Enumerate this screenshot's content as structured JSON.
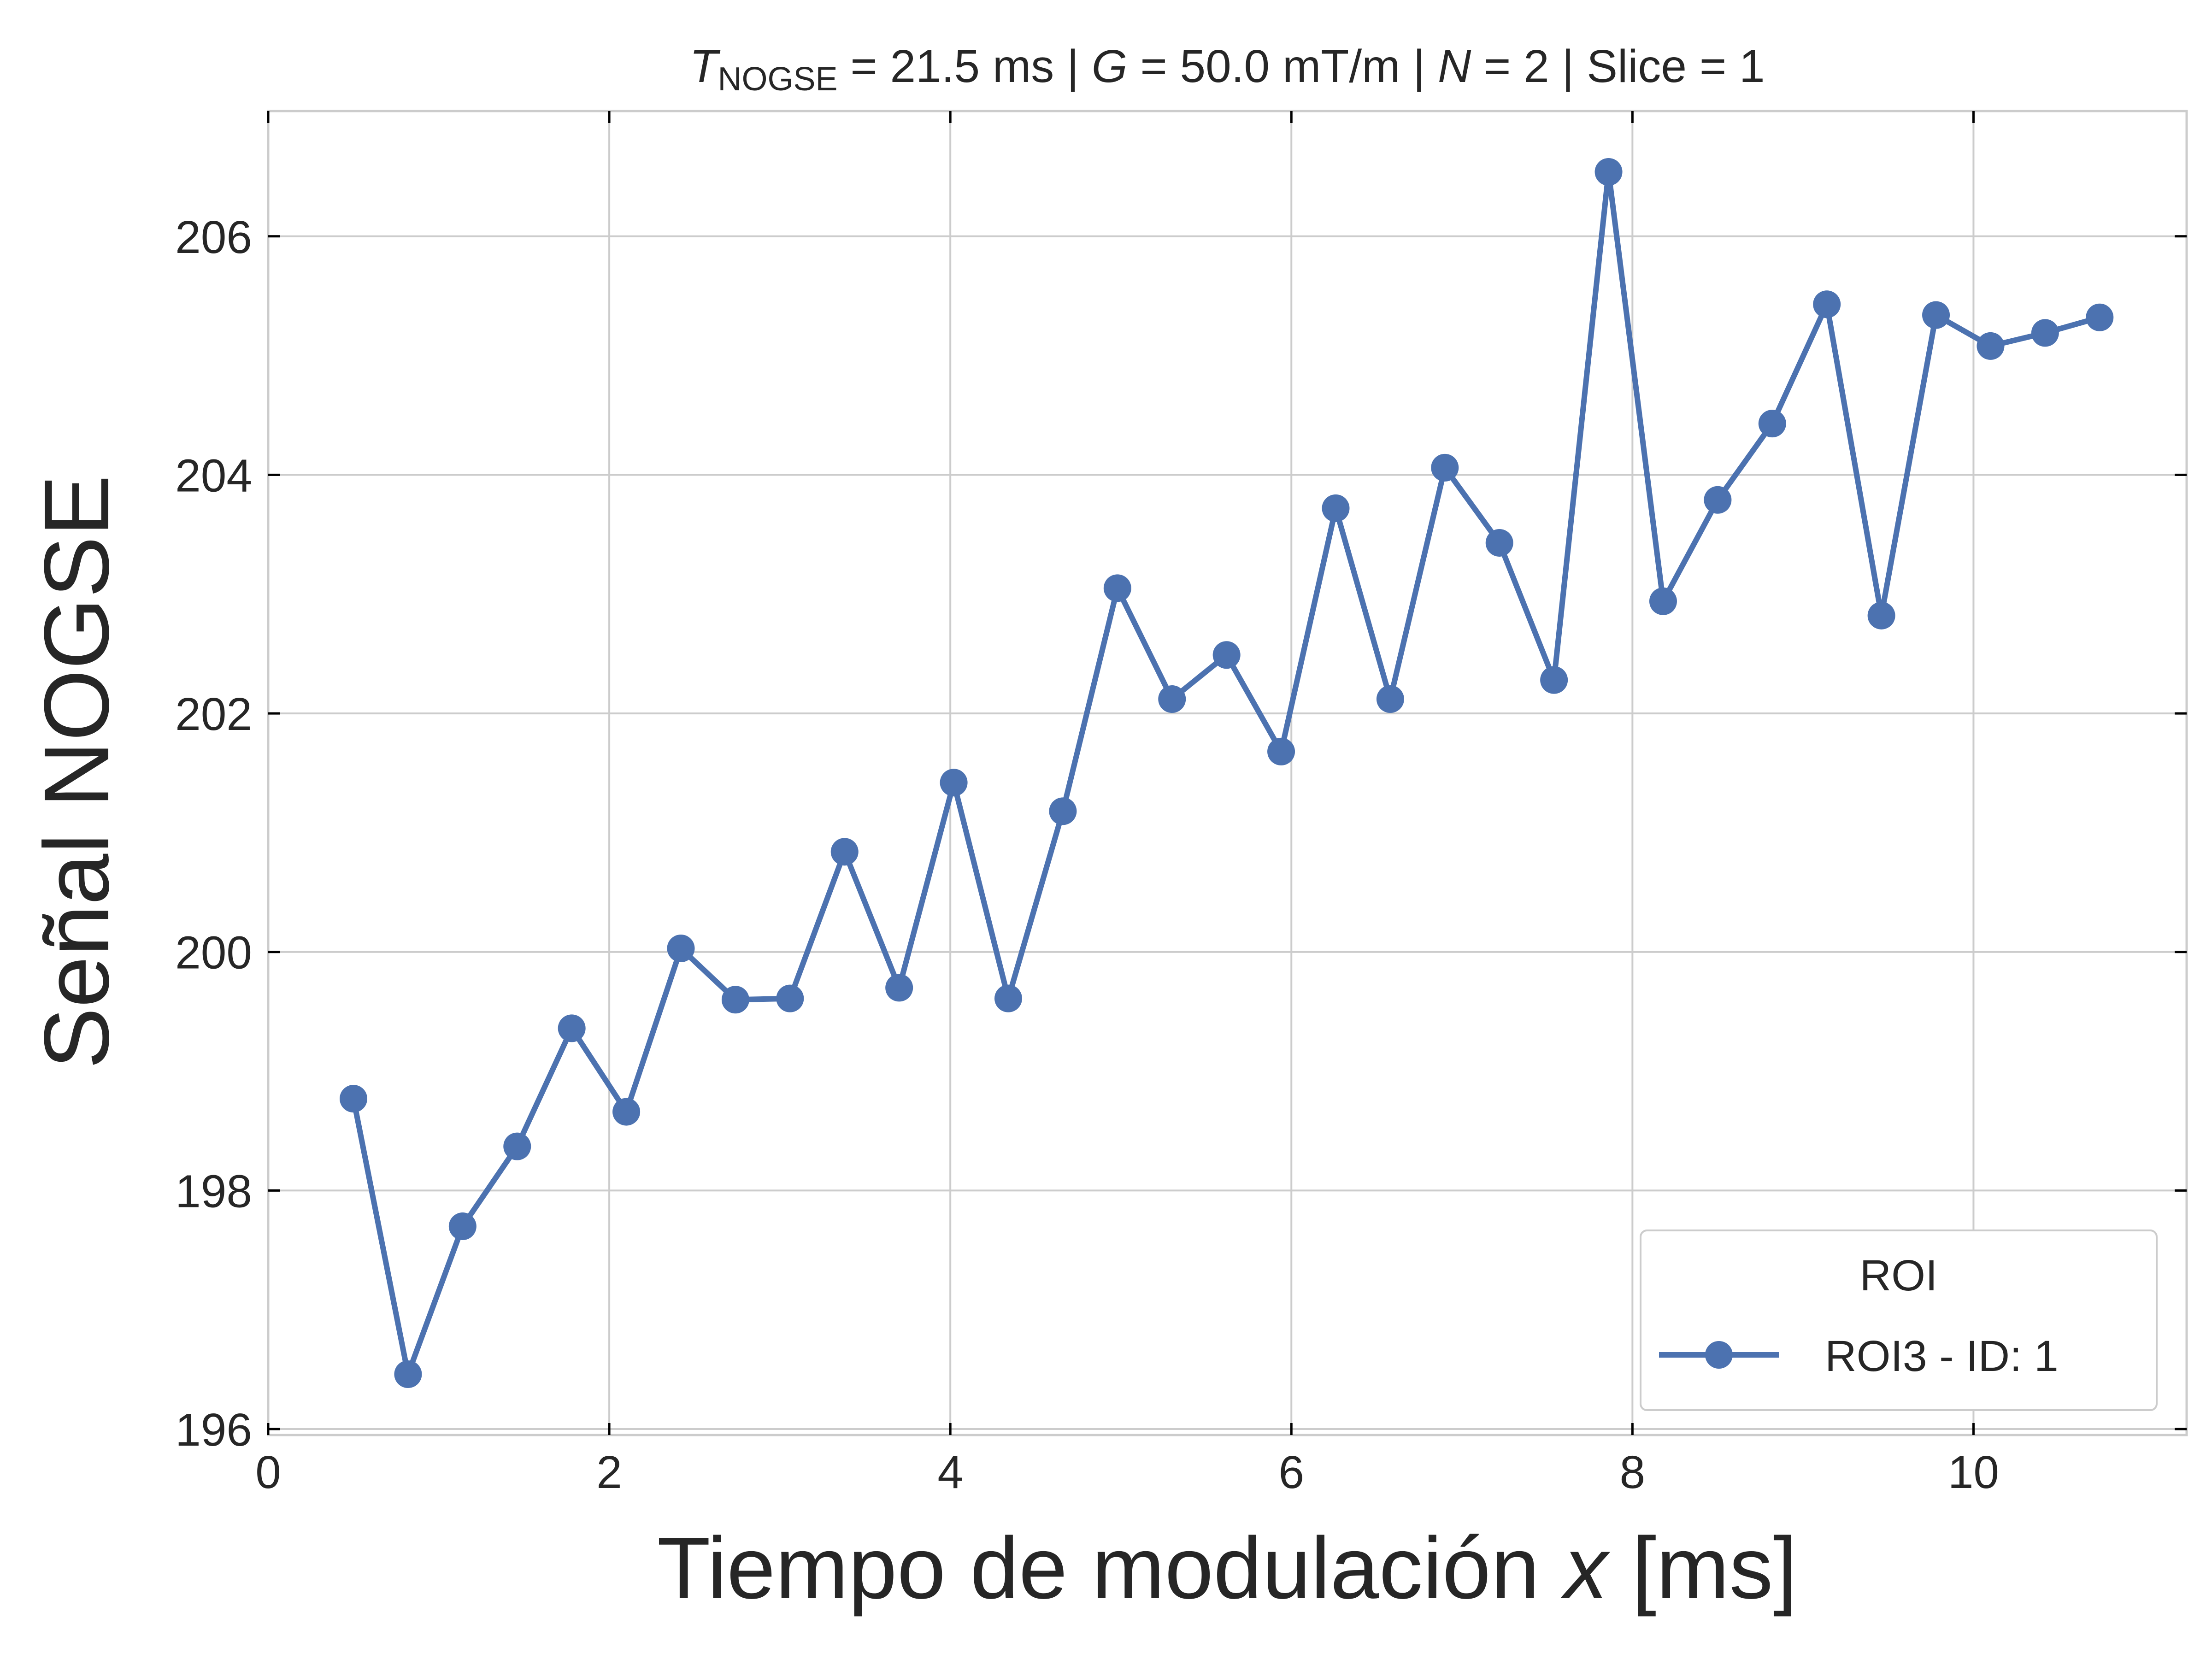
{
  "chart_data": {
    "type": "line",
    "title": {
      "t_symbol": "T",
      "t_subscript": "NOGSE",
      "t_value": " = 21.5 ms | ",
      "g_symbol": "G",
      "g_value": " = 50.0 mT/m | ",
      "n_symbol": "N",
      "n_value": " = 2 | Slice = 1"
    },
    "xlabel": {
      "prefix": "Tiempo de modulación ",
      "var": "x",
      "suffix": " [ms]"
    },
    "ylabel": "Señal NOGSE",
    "xlim": [
      0,
      11.25
    ],
    "ylim": [
      195.95,
      207.05
    ],
    "xticks": [
      0,
      2,
      4,
      6,
      8,
      10
    ],
    "xtick_labels": [
      "0",
      "2",
      "4",
      "6",
      "8",
      "10"
    ],
    "yticks": [
      196,
      198,
      200,
      202,
      204,
      206
    ],
    "ytick_labels": [
      "196",
      "198",
      "200",
      "202",
      "204",
      "206"
    ],
    "grid": true,
    "legend": {
      "title": "ROI",
      "placement": "lower right"
    },
    "series": [
      {
        "name": "ROI3 - ID: 1",
        "color": "#4c72b0",
        "marker": "circle",
        "x": [
          0.5,
          0.82,
          1.14,
          1.46,
          1.78,
          2.1,
          2.42,
          2.74,
          3.06,
          3.38,
          3.7,
          4.02,
          4.34,
          4.66,
          4.98,
          5.3,
          5.62,
          5.94,
          6.26,
          6.58,
          6.9,
          7.22,
          7.54,
          7.86,
          8.18,
          8.5,
          8.82,
          9.14,
          9.46,
          9.78,
          10.1,
          10.42,
          10.74
        ],
        "y": [
          198.77,
          196.46,
          197.7,
          198.37,
          199.36,
          198.66,
          200.03,
          199.6,
          199.61,
          200.84,
          199.7,
          201.42,
          199.61,
          201.18,
          203.05,
          202.12,
          202.49,
          201.68,
          203.72,
          202.12,
          204.06,
          203.43,
          202.28,
          206.54,
          202.94,
          203.79,
          204.43,
          205.43,
          202.82,
          205.34,
          205.08,
          205.19,
          205.32
        ]
      }
    ]
  }
}
